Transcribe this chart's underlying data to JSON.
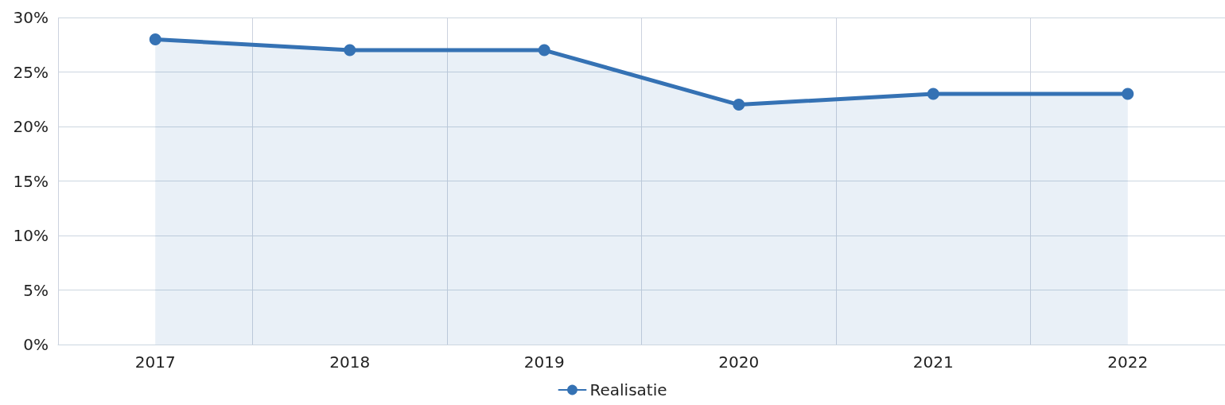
{
  "chart_data": {
    "type": "area",
    "categories": [
      "2017",
      "2018",
      "2019",
      "2020",
      "2021",
      "2022"
    ],
    "series": [
      {
        "name": "Realisatie",
        "color": "#3572b4",
        "values": [
          28,
          27,
          27,
          22,
          23,
          23
        ]
      }
    ],
    "ylim": [
      0,
      30
    ],
    "yticks": [
      {
        "value": 0,
        "label": "0%"
      },
      {
        "value": 5,
        "label": "5%"
      },
      {
        "value": 10,
        "label": "10%"
      },
      {
        "value": 15,
        "label": "15%"
      },
      {
        "value": 20,
        "label": "20%"
      },
      {
        "value": 25,
        "label": "25%"
      },
      {
        "value": 30,
        "label": "30%"
      }
    ],
    "grid": true,
    "legend": "bottom",
    "marker": "circle",
    "line_style": "solid"
  }
}
